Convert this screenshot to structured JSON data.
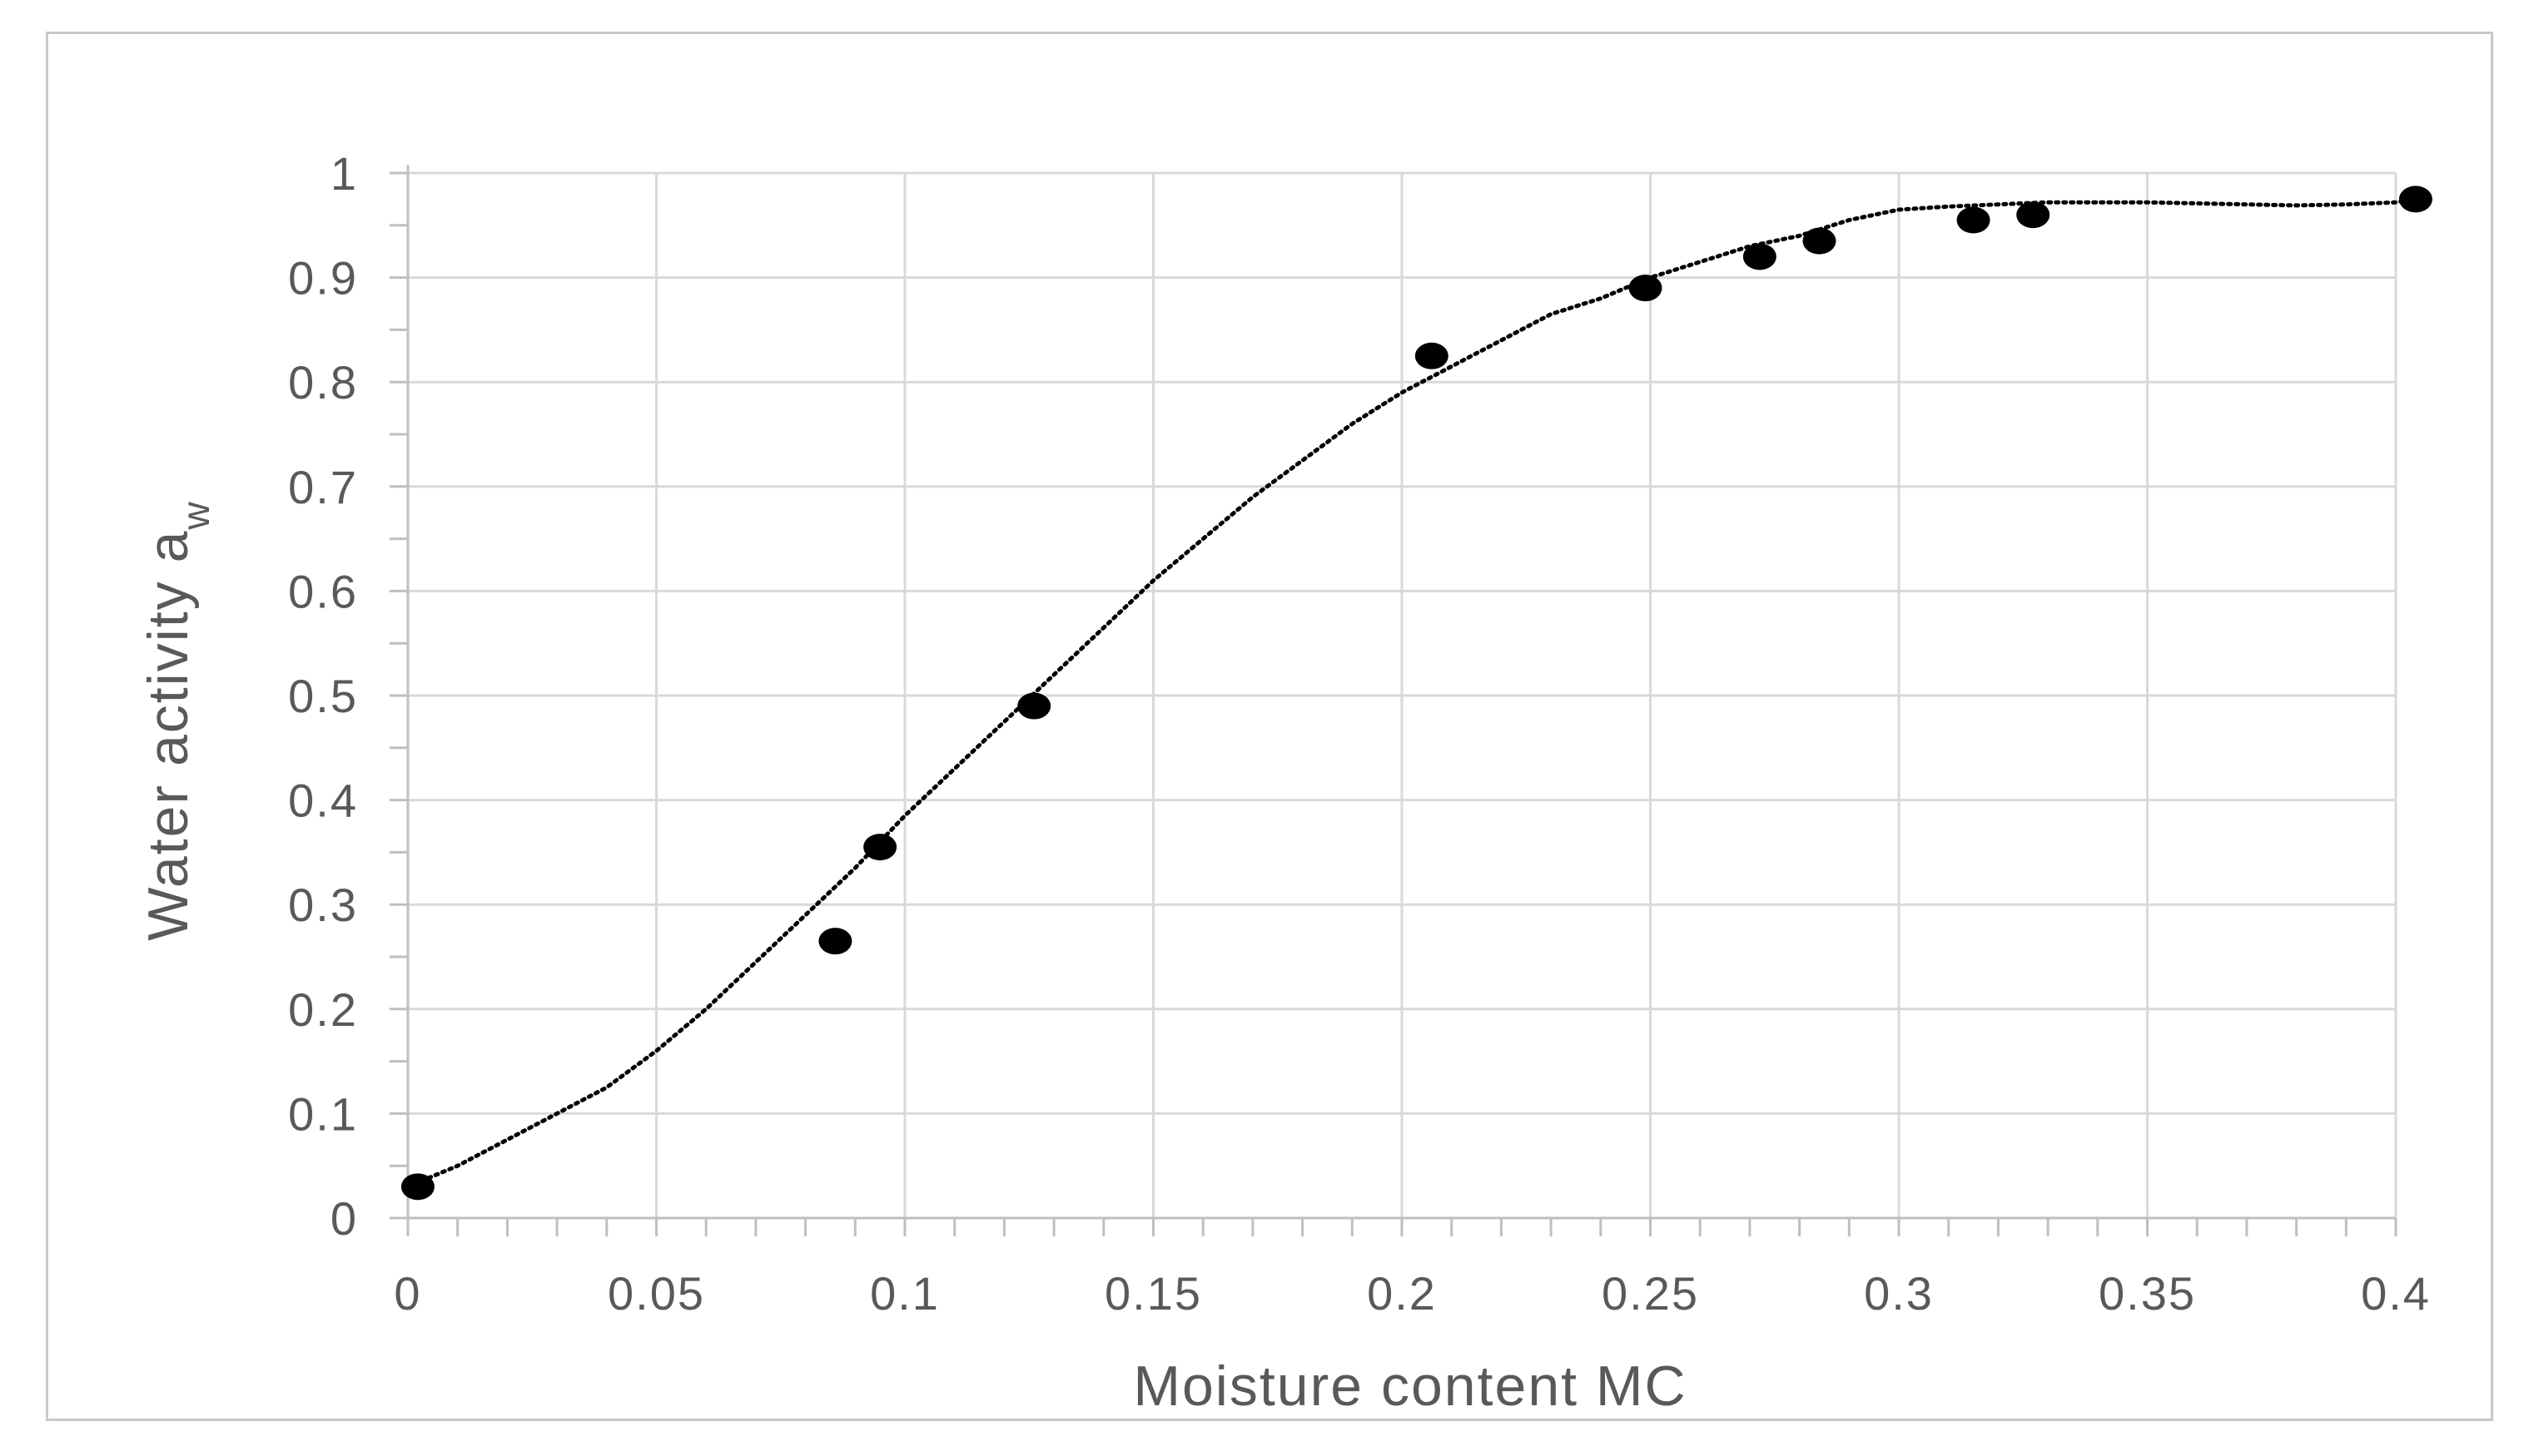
{
  "chart_data": {
    "type": "scatter",
    "xlabel": "Moisture content  MC",
    "ylabel": "Water activity a",
    "ylabel_sub": "w",
    "xlim": [
      0,
      0.4
    ],
    "ylim": [
      0,
      1
    ],
    "xticks": [
      "0",
      "0.05",
      "0.1",
      "0.15",
      "0.2",
      "0.25",
      "0.3",
      "0.35",
      "0.4"
    ],
    "yticks": [
      "0",
      "0.1",
      "0.2",
      "0.3",
      "0.4",
      "0.5",
      "0.6",
      "0.7",
      "0.8",
      "0.9",
      "1"
    ],
    "grid": true,
    "legend": "none",
    "series": [
      {
        "kind": "points",
        "marker": "filled-circle",
        "color": "#000000",
        "points": [
          [
            0.002,
            0.03
          ],
          [
            0.086,
            0.265
          ],
          [
            0.095,
            0.355
          ],
          [
            0.126,
            0.49
          ],
          [
            0.206,
            0.825
          ],
          [
            0.249,
            0.89
          ],
          [
            0.272,
            0.92
          ],
          [
            0.284,
            0.935
          ],
          [
            0.315,
            0.955
          ],
          [
            0.327,
            0.96
          ],
          [
            0.404,
            0.975
          ]
        ]
      },
      {
        "kind": "trendline",
        "style": "dotted",
        "color": "#000000",
        "points": [
          [
            0.0,
            0.03
          ],
          [
            0.01,
            0.05
          ],
          [
            0.02,
            0.075
          ],
          [
            0.03,
            0.1
          ],
          [
            0.04,
            0.125
          ],
          [
            0.05,
            0.16
          ],
          [
            0.06,
            0.2
          ],
          [
            0.07,
            0.245
          ],
          [
            0.08,
            0.29
          ],
          [
            0.09,
            0.335
          ],
          [
            0.1,
            0.385
          ],
          [
            0.11,
            0.43
          ],
          [
            0.12,
            0.475
          ],
          [
            0.13,
            0.52
          ],
          [
            0.14,
            0.565
          ],
          [
            0.15,
            0.61
          ],
          [
            0.16,
            0.65
          ],
          [
            0.17,
            0.69
          ],
          [
            0.18,
            0.725
          ],
          [
            0.19,
            0.76
          ],
          [
            0.2,
            0.79
          ],
          [
            0.21,
            0.815
          ],
          [
            0.22,
            0.84
          ],
          [
            0.23,
            0.865
          ],
          [
            0.24,
            0.88
          ],
          [
            0.25,
            0.9
          ],
          [
            0.26,
            0.915
          ],
          [
            0.27,
            0.93
          ],
          [
            0.28,
            0.94
          ],
          [
            0.29,
            0.955
          ],
          [
            0.3,
            0.965
          ],
          [
            0.31,
            0.968
          ],
          [
            0.32,
            0.97
          ],
          [
            0.33,
            0.972
          ],
          [
            0.34,
            0.972
          ],
          [
            0.35,
            0.972
          ],
          [
            0.36,
            0.971
          ],
          [
            0.37,
            0.97
          ],
          [
            0.38,
            0.969
          ],
          [
            0.39,
            0.97
          ],
          [
            0.4,
            0.972
          ],
          [
            0.405,
            0.976
          ]
        ]
      }
    ]
  }
}
